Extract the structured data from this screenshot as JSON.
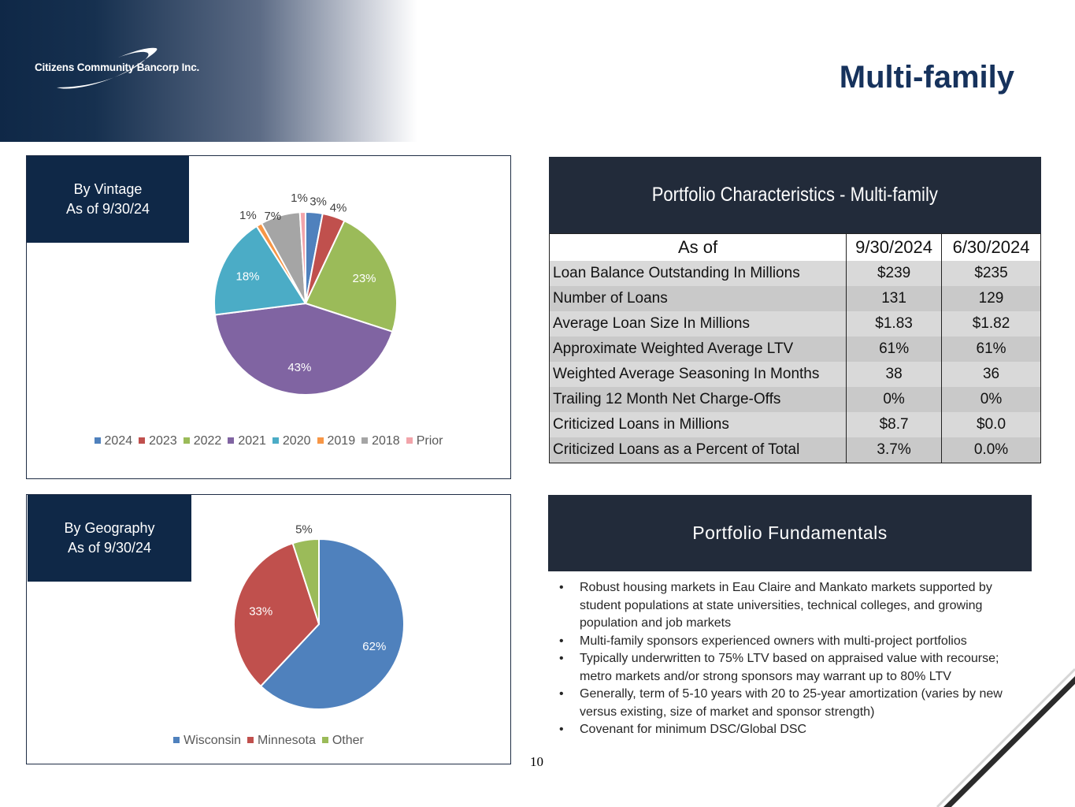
{
  "header": {
    "logo_text": "Citizens Community Bancorp Inc.",
    "title": "Multi-family"
  },
  "chart_data": [
    {
      "type": "pie",
      "panel_label_line1": "By Vintage",
      "panel_label_line2": "As of 9/30/24",
      "categories": [
        "2024",
        "2023",
        "2022",
        "2021",
        "2020",
        "2019",
        "2018",
        "Prior"
      ],
      "values": [
        3,
        4,
        23,
        43,
        18,
        1,
        7,
        1
      ],
      "data_labels": [
        "3%",
        "4%",
        "23%",
        "43%",
        "18%",
        "1%",
        "7%",
        "1%"
      ],
      "colors": [
        "#4f81bd",
        "#c0504d",
        "#9bbb59",
        "#8064a2",
        "#4bacc6",
        "#f79646",
        "#a5a5a5",
        "#f2a4aa"
      ],
      "legend_position": "bottom"
    },
    {
      "type": "pie",
      "panel_label_line1": "By Geography",
      "panel_label_line2": "As of 9/30/24",
      "categories": [
        "Wisconsin",
        "Minnesota",
        "Other"
      ],
      "values": [
        62,
        33,
        5
      ],
      "data_labels": [
        "62%",
        "33%",
        "5%"
      ],
      "colors": [
        "#4f81bd",
        "#c0504d",
        "#9bbb59"
      ],
      "legend_position": "bottom"
    }
  ],
  "table": {
    "title": "Portfolio Characteristics - Multi-family",
    "headers": [
      "As of",
      "9/30/2024",
      "6/30/2024"
    ],
    "rows": [
      [
        "Loan Balance Outstanding In Millions",
        "$239",
        "$235"
      ],
      [
        "Number of Loans",
        "131",
        "129"
      ],
      [
        "Average Loan Size In Millions",
        "$1.83",
        "$1.82"
      ],
      [
        "Approximate Weighted Average LTV",
        "61%",
        "61%"
      ],
      [
        "Weighted Average Seasoning In Months",
        "38",
        "36"
      ],
      [
        "Trailing 12 Month Net Charge-Offs",
        "0%",
        "0%"
      ],
      [
        "Criticized Loans in Millions",
        "$8.7",
        "$0.0"
      ],
      [
        "Criticized Loans as a Percent of Total",
        "3.7%",
        "0.0%"
      ]
    ]
  },
  "fundamentals": {
    "title": "Portfolio Fundamentals",
    "bullets": [
      "Robust housing markets in Eau Claire and Mankato markets supported by student populations at state universities, technical colleges, and growing population and job markets",
      "Multi-family sponsors experienced owners with multi-project portfolios",
      "Typically underwritten to 75% LTV based on appraised value with recourse; metro markets and/or strong sponsors may warrant up to 80% LTV",
      "Generally, term of 5-10 years with 20 to 25-year amortization (varies by new versus existing, size of market and sponsor strength)",
      "Covenant for minimum DSC/Global DSC"
    ]
  },
  "page_number": "10"
}
